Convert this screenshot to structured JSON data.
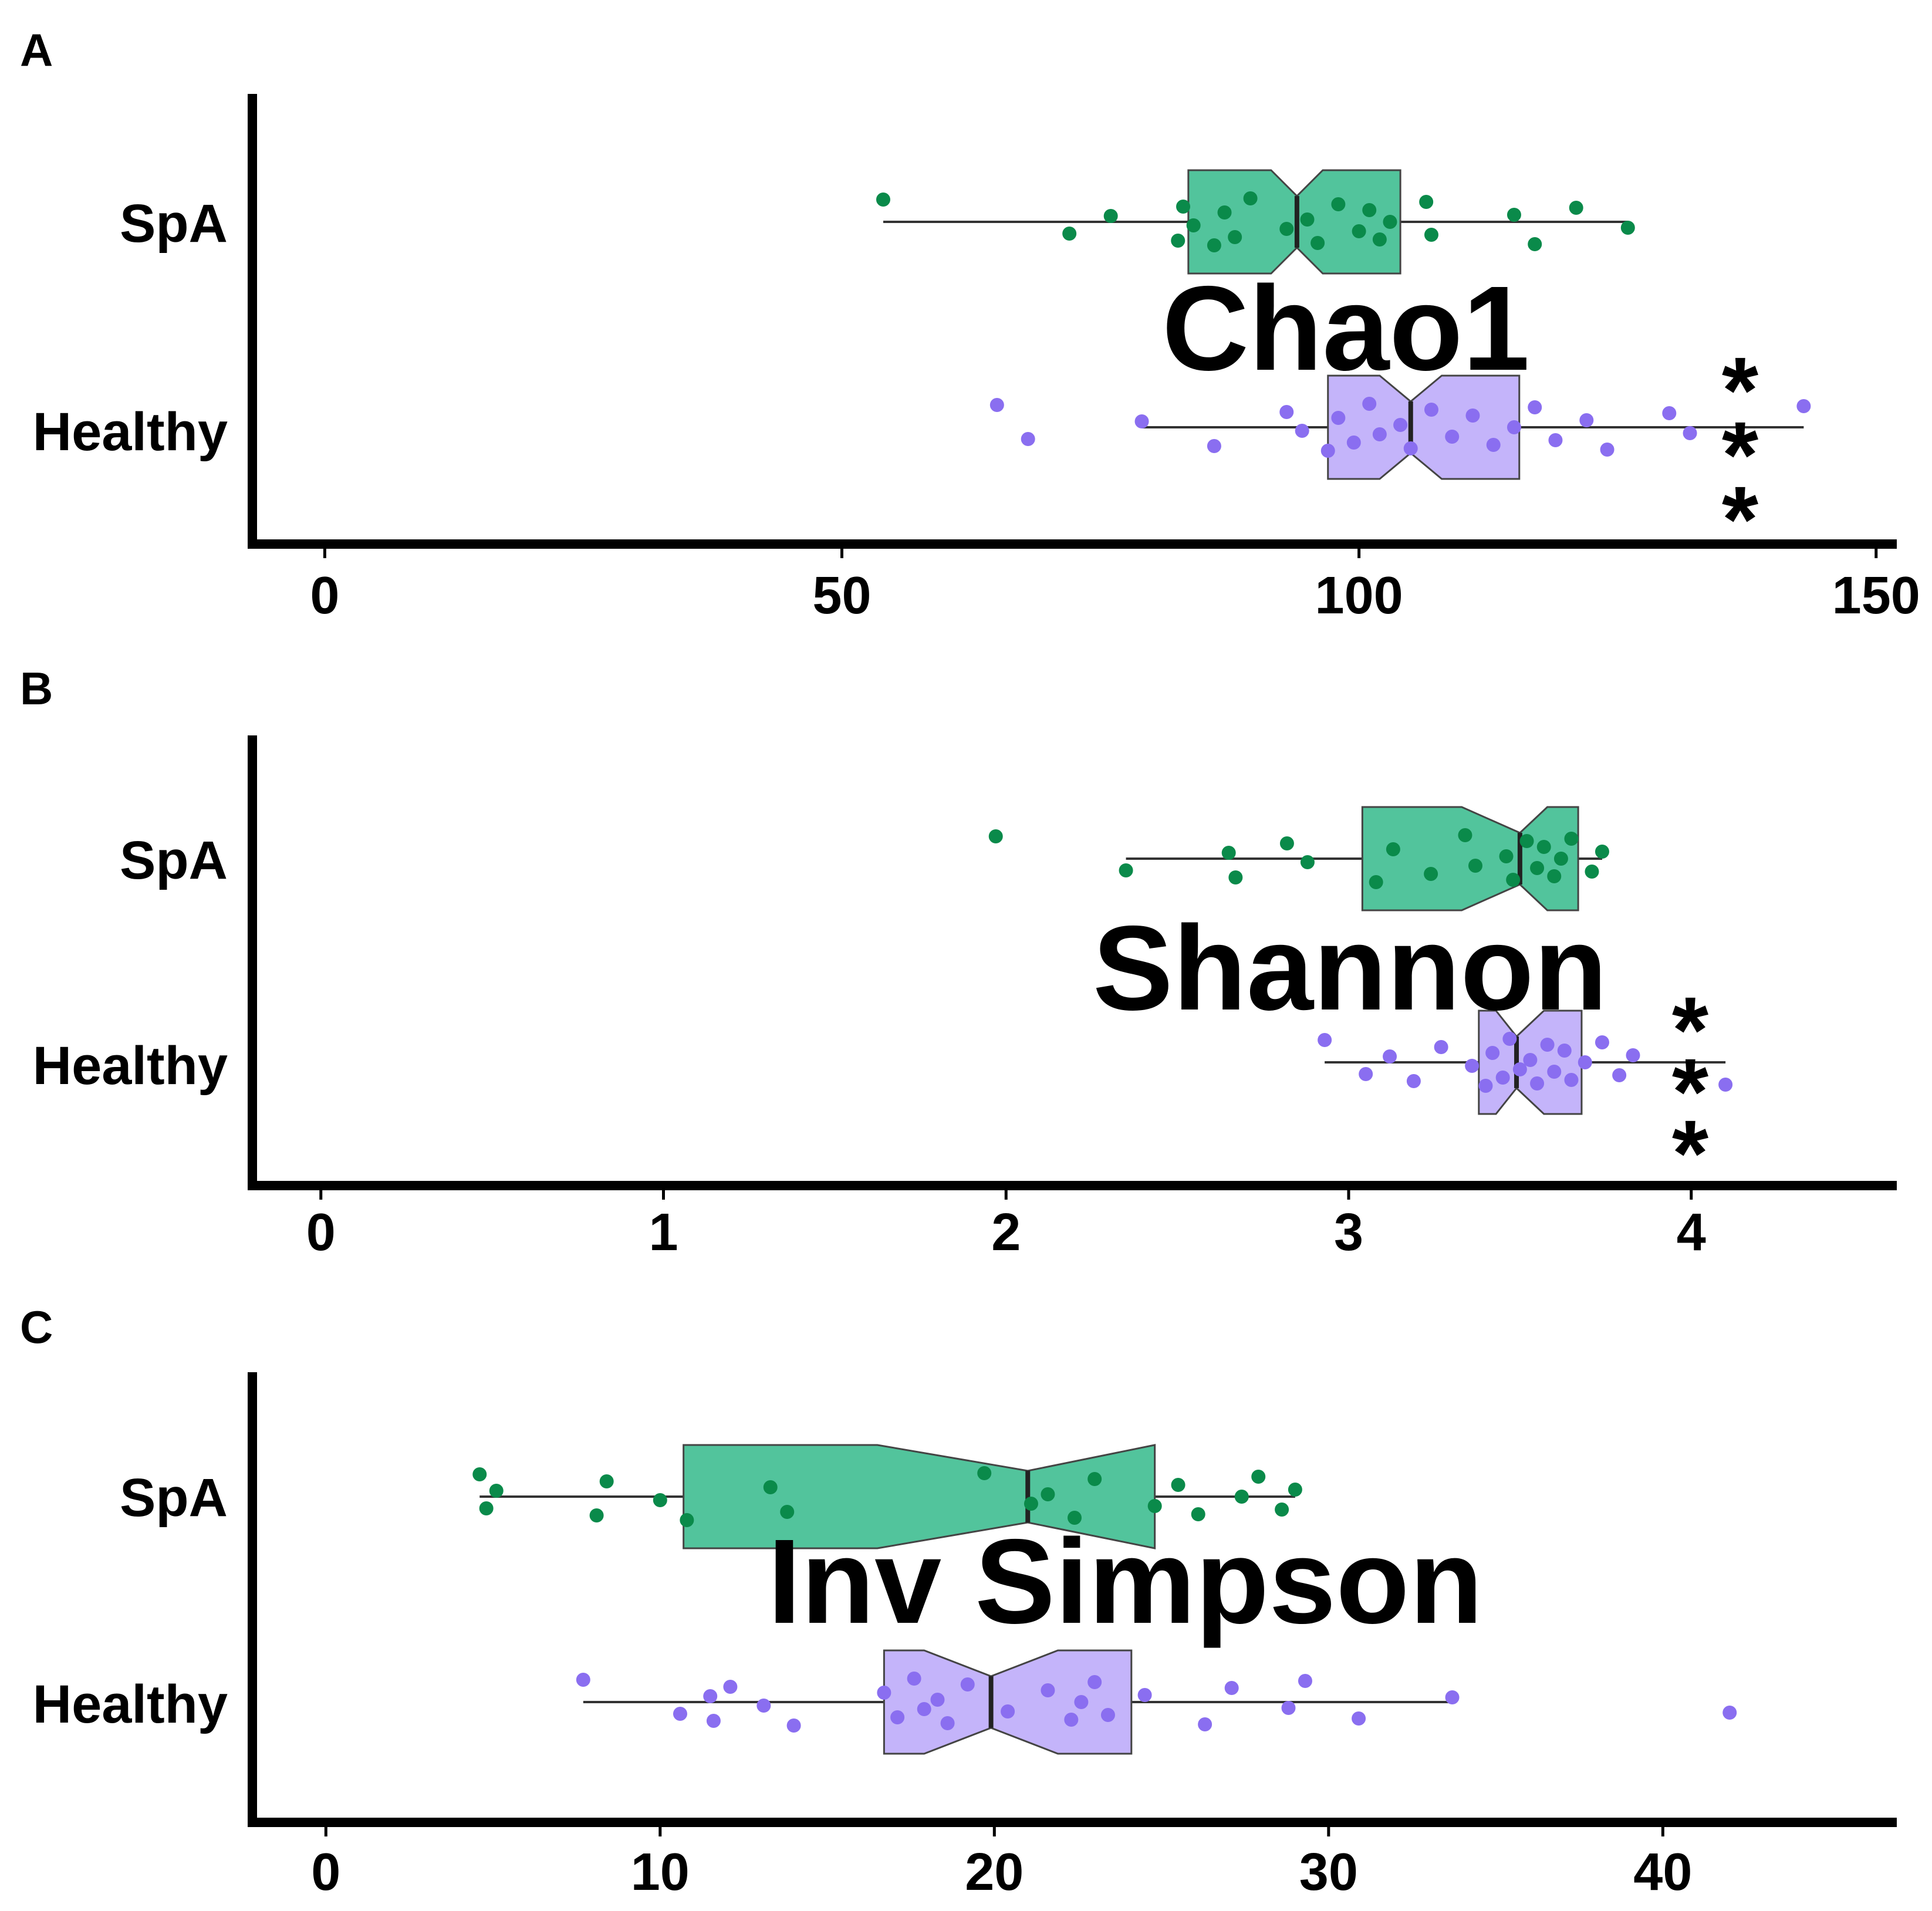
{
  "colors": {
    "spa_fill": "#52c49c",
    "spa_point": "#0a8a4a",
    "healthy_fill": "#c4b4fa",
    "healthy_point": "#8a6ef0",
    "axis": "#000000",
    "line": "#333333"
  },
  "chart_data": [
    {
      "type": "box",
      "panel": "A",
      "metric_label": "Chao1",
      "significance": "***",
      "categories": [
        "SpA",
        "Healthy"
      ],
      "xlim": [
        -7,
        152
      ],
      "xticks": [
        "0",
        "50",
        "100",
        "150"
      ],
      "xtick_values": [
        0,
        50,
        100,
        150
      ],
      "series": [
        {
          "name": "SpA",
          "whisker_low": 54,
          "q1": 83.5,
          "median": 94,
          "notch_low": 91.5,
          "notch_high": 96.5,
          "q3": 104,
          "whisker_high": 126,
          "points": [
            54,
            72,
            76,
            82.5,
            83,
            84,
            86,
            87,
            88,
            89.5,
            93,
            95,
            96,
            98,
            100,
            101,
            102,
            103,
            106.5,
            107,
            115,
            117,
            121,
            126
          ]
        },
        {
          "name": "Healthy",
          "whisker_low": 79,
          "q1": 97,
          "median": 105,
          "notch_low": 102,
          "notch_high": 108,
          "q3": 115.5,
          "whisker_high": 143,
          "points": [
            65,
            68,
            79,
            86,
            93,
            94.5,
            97,
            98,
            99.5,
            101,
            102,
            104,
            105,
            107,
            109,
            111,
            113,
            115,
            117,
            119,
            122,
            124,
            130,
            132,
            143
          ]
        }
      ]
    },
    {
      "type": "box",
      "panel": "B",
      "metric_label": "Shannon",
      "significance": "***",
      "categories": [
        "SpA",
        "Healthy"
      ],
      "xlim": [
        -0.2,
        4.6
      ],
      "xticks": [
        "0",
        "1",
        "2",
        "3",
        "4"
      ],
      "xtick_values": [
        0,
        1,
        2,
        3,
        4
      ],
      "series": [
        {
          "name": "SpA",
          "whisker_low": 2.35,
          "q1": 3.04,
          "median": 3.5,
          "notch_low": 3.33,
          "notch_high": 3.58,
          "q3": 3.67,
          "whisker_high": 3.74,
          "points": [
            1.97,
            2.35,
            2.65,
            2.67,
            2.82,
            2.88,
            3.08,
            3.13,
            3.24,
            3.34,
            3.37,
            3.46,
            3.48,
            3.52,
            3.55,
            3.57,
            3.6,
            3.62,
            3.65,
            3.71,
            3.74
          ]
        },
        {
          "name": "Healthy",
          "whisker_low": 2.93,
          "q1": 3.38,
          "median": 3.49,
          "notch_low": 3.43,
          "notch_high": 3.57,
          "q3": 3.68,
          "whisker_high": 4.1,
          "points": [
            2.93,
            3.05,
            3.12,
            3.19,
            3.27,
            3.36,
            3.4,
            3.42,
            3.45,
            3.47,
            3.5,
            3.53,
            3.55,
            3.58,
            3.6,
            3.63,
            3.65,
            3.69,
            3.74,
            3.79,
            3.83,
            4.1
          ]
        }
      ]
    },
    {
      "type": "box",
      "panel": "C",
      "metric_label": "Inv Simpson",
      "significance": "",
      "categories": [
        "SpA",
        "Healthy"
      ],
      "xlim": [
        -2.2,
        47
      ],
      "xticks": [
        "0",
        "10",
        "20",
        "30",
        "40"
      ],
      "xtick_values": [
        0,
        10,
        20,
        30,
        40
      ],
      "series": [
        {
          "name": "SpA",
          "whisker_low": 4.6,
          "q1": 10.7,
          "median": 21,
          "notch_low": 16.5,
          "notch_high": 24.8,
          "q3": 24.8,
          "whisker_high": 29,
          "points": [
            4.6,
            4.8,
            5.1,
            8.1,
            8.4,
            10,
            10.8,
            13.3,
            13.8,
            19.7,
            21.1,
            21.6,
            22.4,
            23,
            24.8,
            25.5,
            26.1,
            27.4,
            27.9,
            28.6,
            29
          ]
        },
        {
          "name": "Healthy",
          "whisker_low": 7.7,
          "q1": 16.7,
          "median": 19.9,
          "notch_low": 17.9,
          "notch_high": 21.9,
          "q3": 24.1,
          "whisker_high": 33.7,
          "points": [
            7.7,
            10.6,
            11.5,
            11.6,
            12.1,
            13.1,
            14,
            16.7,
            17.1,
            17.6,
            17.9,
            18.3,
            18.6,
            19.2,
            20.4,
            21.6,
            22.3,
            22.6,
            23,
            23.4,
            24.5,
            26.3,
            27.1,
            28.8,
            29.3,
            30.9,
            33.7,
            42
          ]
        }
      ]
    }
  ]
}
